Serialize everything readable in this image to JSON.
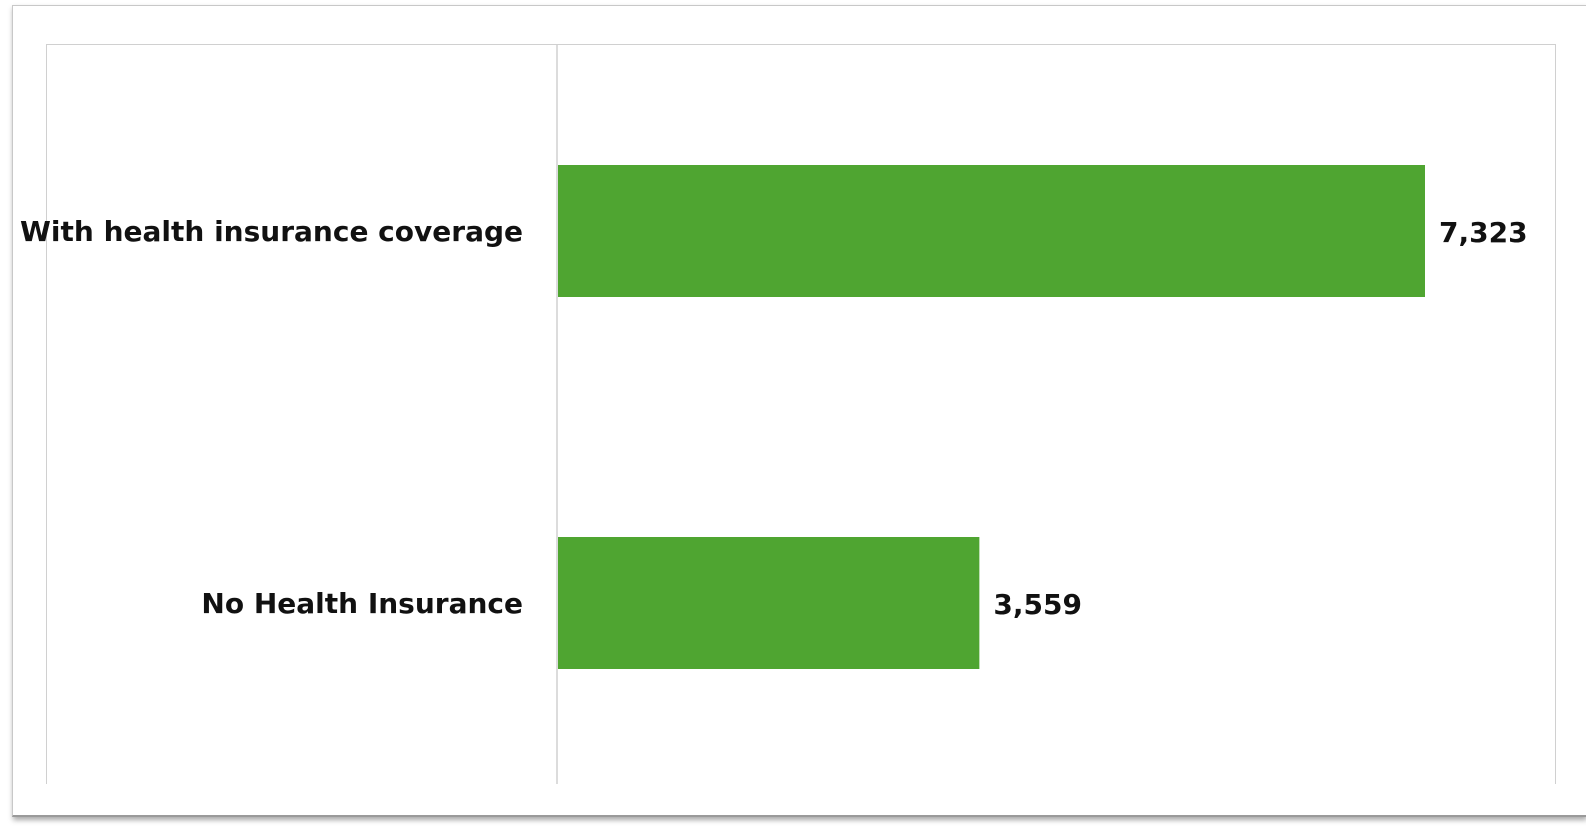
{
  "chart_data": {
    "type": "bar",
    "orientation": "horizontal",
    "categories": [
      "With health insurance coverage",
      "No Health Insurance"
    ],
    "values": [
      7323,
      3559
    ],
    "value_labels": [
      "7,323",
      "3,559"
    ],
    "title": "",
    "xlabel": "",
    "ylabel": "",
    "xlim": [
      0,
      8000
    ],
    "grid": false,
    "legend": "none",
    "bar_color": "#4fa531",
    "axis_color": "#d0d0d0"
  }
}
